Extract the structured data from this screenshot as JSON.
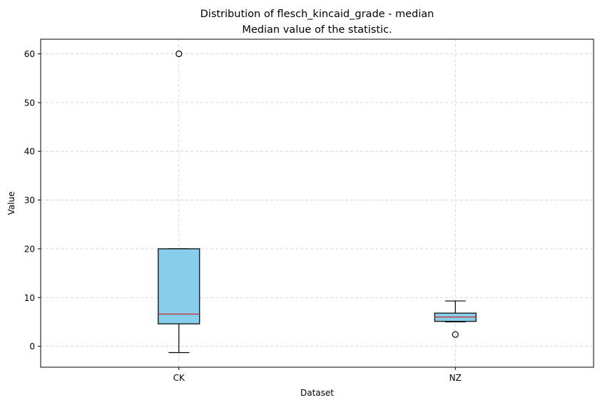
{
  "chart_data": {
    "type": "box",
    "title": "Distribution of flesch_kincaid_grade - median",
    "subtitle": "Median value of the statistic.",
    "xlabel": "Dataset",
    "ylabel": "Value",
    "categories": [
      "CK",
      "NZ"
    ],
    "ylim": [
      -4.3,
      63.0
    ],
    "yticks": [
      0,
      10,
      20,
      30,
      40,
      50,
      60
    ],
    "grid": true,
    "colors": {
      "box_fill": "#87ceeb",
      "median": "#d62728",
      "edge": "#000000",
      "grid": "#cccccc"
    },
    "boxes": [
      {
        "category": "CK",
        "whisker_low": -1.3,
        "q1": 4.6,
        "median": 6.6,
        "q3": 20.0,
        "whisker_high": 20.0,
        "outliers": [
          60.0
        ]
      },
      {
        "category": "NZ",
        "whisker_low": 5.0,
        "q1": 5.1,
        "median": 6.0,
        "q3": 6.8,
        "whisker_high": 9.3,
        "outliers": [
          2.4
        ]
      }
    ]
  }
}
